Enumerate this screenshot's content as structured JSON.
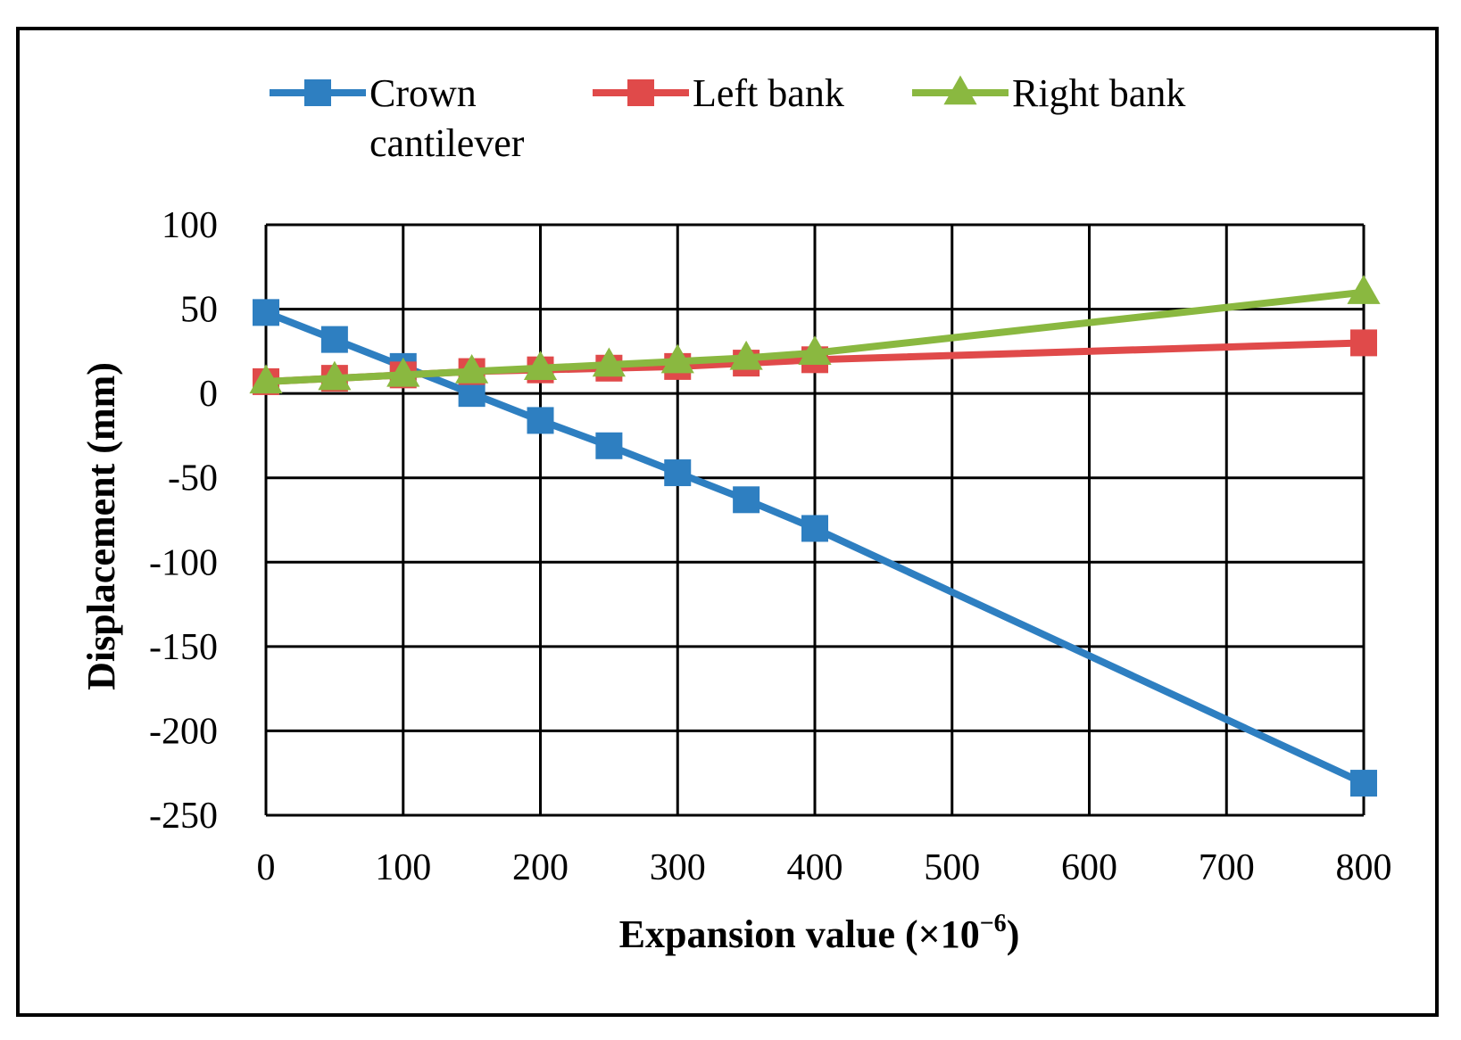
{
  "chart_data": {
    "type": "line",
    "title": "",
    "xlabel": "Expansion value (×10",
    "xlabel_superscript": "−6",
    "xlabel_suffix": ")",
    "ylabel": "Displacement (mm)",
    "xlim": [
      0,
      800
    ],
    "ylim": [
      -250,
      100
    ],
    "x_ticks": [
      "0",
      "100",
      "200",
      "300",
      "400",
      "500",
      "600",
      "700",
      "800"
    ],
    "x_tick_values": [
      0,
      100,
      200,
      300,
      400,
      500,
      600,
      700,
      800
    ],
    "y_ticks": [
      "100",
      "50",
      "0",
      "-50",
      "-100",
      "-150",
      "-200",
      "-250"
    ],
    "y_tick_values": [
      100,
      50,
      0,
      -50,
      -100,
      -150,
      -200,
      -250
    ],
    "grid": true,
    "legend_position": "top",
    "series": [
      {
        "name": "Crown cantilever",
        "legend_lines": [
          "Crown",
          "cantilever"
        ],
        "color": "#2e7fc1",
        "marker": "square",
        "x": [
          0,
          50,
          100,
          150,
          200,
          250,
          300,
          350,
          400,
          800
        ],
        "values": [
          48,
          32,
          16,
          0,
          -16,
          -31,
          -47,
          -63,
          -80,
          -231
        ]
      },
      {
        "name": "Left bank",
        "legend_lines": [
          "Left bank"
        ],
        "color": "#e04a4a",
        "marker": "square",
        "x": [
          0,
          50,
          100,
          150,
          200,
          250,
          300,
          350,
          400,
          800
        ],
        "values": [
          7,
          9,
          11,
          13,
          14,
          15,
          16,
          18,
          20,
          30
        ]
      },
      {
        "name": "Right bank",
        "legend_lines": [
          "Right bank"
        ],
        "color": "#8ab840",
        "marker": "triangle",
        "x": [
          0,
          50,
          100,
          150,
          200,
          250,
          300,
          350,
          400,
          800
        ],
        "values": [
          7,
          9,
          11,
          13,
          15,
          17,
          19,
          21,
          24,
          60
        ]
      }
    ]
  }
}
